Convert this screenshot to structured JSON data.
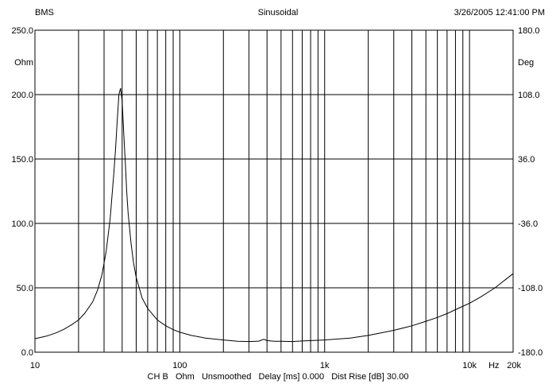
{
  "header": {
    "left": "BMS",
    "center": "Sinusoidal",
    "right": "3/26/2005 12:41:00 PM"
  },
  "footer": {
    "text": "CH B   Ohm   Unsmoothed   Delay [ms] 0.000   Dist Rise [dB] 30.00"
  },
  "chart_data": {
    "type": "line",
    "xscale": "log",
    "xlim": [
      10,
      20000
    ],
    "ylim": [
      0,
      250
    ],
    "y2lim": [
      -180,
      180
    ],
    "grid": true,
    "ylabel": "Ohm",
    "y2label": "Deg",
    "xlabel": "Hz",
    "x_ticks": [
      {
        "value": 10,
        "label": "10"
      },
      {
        "value": 100,
        "label": "100"
      },
      {
        "value": 1000,
        "label": "1k"
      },
      {
        "value": 10000,
        "label": "10k"
      },
      {
        "value": 20000,
        "label": "20k"
      }
    ],
    "y_ticks": [
      {
        "value": 250,
        "label": "250.0"
      },
      {
        "value": 200,
        "label": "200.0"
      },
      {
        "value": 150,
        "label": "150.0"
      },
      {
        "value": 100,
        "label": "100.0"
      },
      {
        "value": 50,
        "label": "50.0"
      },
      {
        "value": 0,
        "label": "0.0"
      }
    ],
    "y2_ticks": [
      {
        "value": 180,
        "label": "180.0"
      },
      {
        "value": 108,
        "label": "108.0"
      },
      {
        "value": 36,
        "label": "36.0"
      },
      {
        "value": -36,
        "label": "-36.0"
      },
      {
        "value": -108,
        "label": "-108.0"
      },
      {
        "value": -180,
        "label": "-180.0"
      }
    ],
    "series": [
      {
        "x": [
          10,
          12,
          14,
          16,
          18,
          20,
          22,
          25,
          27,
          29,
          31,
          33,
          35,
          36,
          37,
          38,
          39,
          40,
          41,
          42,
          43,
          44,
          46,
          48,
          50,
          55,
          60,
          70,
          80,
          90,
          100,
          120,
          150,
          200,
          250,
          300,
          350,
          380,
          400,
          450,
          500,
          600,
          700,
          800,
          1000,
          1500,
          2000,
          3000,
          4000,
          5000,
          6000,
          7000,
          8000,
          10000,
          12000,
          15000,
          18000,
          20000
        ],
        "values": [
          10.5,
          12.5,
          15,
          18,
          21.5,
          25,
          30,
          39,
          48,
          60,
          78,
          103,
          138,
          158,
          180,
          200,
          205,
          195,
          170,
          148,
          125,
          108,
          85,
          69,
          58,
          42,
          34,
          25,
          20.5,
          17.5,
          15.5,
          13,
          11,
          9.5,
          8.5,
          8.3,
          8.6,
          10,
          9,
          8.5,
          8.5,
          8.3,
          8.7,
          9,
          9.5,
          11,
          13,
          17,
          20.5,
          24,
          27,
          30,
          33,
          38,
          43,
          50,
          57,
          61
        ]
      }
    ]
  }
}
